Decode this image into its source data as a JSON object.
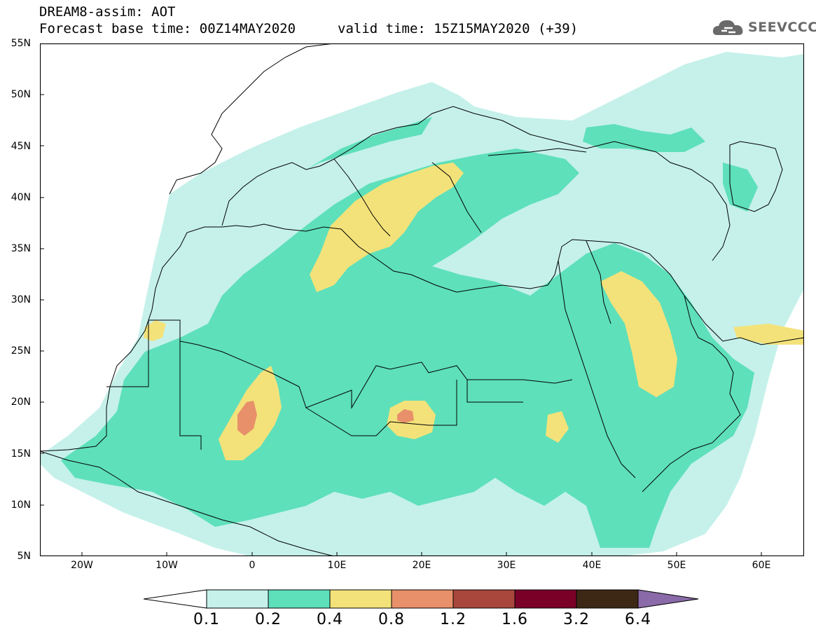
{
  "header": {
    "line1": "DREAM8-assim: AOT",
    "line2": "Forecast base time: 00Z14MAY2020",
    "valid": "valid time: 15Z15MAY2020 (+39)"
  },
  "logo": {
    "text": "SEEVCCC",
    "icon": "cloud-icon"
  },
  "map": {
    "lat_labels": [
      "55N",
      "50N",
      "45N",
      "40N",
      "35N",
      "30N",
      "25N",
      "20N",
      "15N",
      "10N",
      "5N"
    ],
    "lon_labels": [
      "20W",
      "10W",
      "0",
      "10E",
      "20E",
      "30E",
      "40E",
      "50E",
      "60E"
    ],
    "lat_range": [
      5,
      55
    ],
    "lon_range": [
      -25,
      65
    ]
  },
  "legend": {
    "levels": [
      "0.1",
      "0.2",
      "0.4",
      "0.8",
      "1.2",
      "1.6",
      "3.2",
      "6.4"
    ],
    "colors": [
      "#ffffff",
      "#c5f1ea",
      "#5ee0ba",
      "#f3e27a",
      "#e8906a",
      "#a9473c",
      "#7a0028",
      "#3d2815",
      "#8a6aa8"
    ]
  },
  "colors": {
    "c1": "#c5f1ea",
    "c2": "#5ee0ba",
    "c3": "#f3e27a",
    "c4": "#e8906a"
  }
}
